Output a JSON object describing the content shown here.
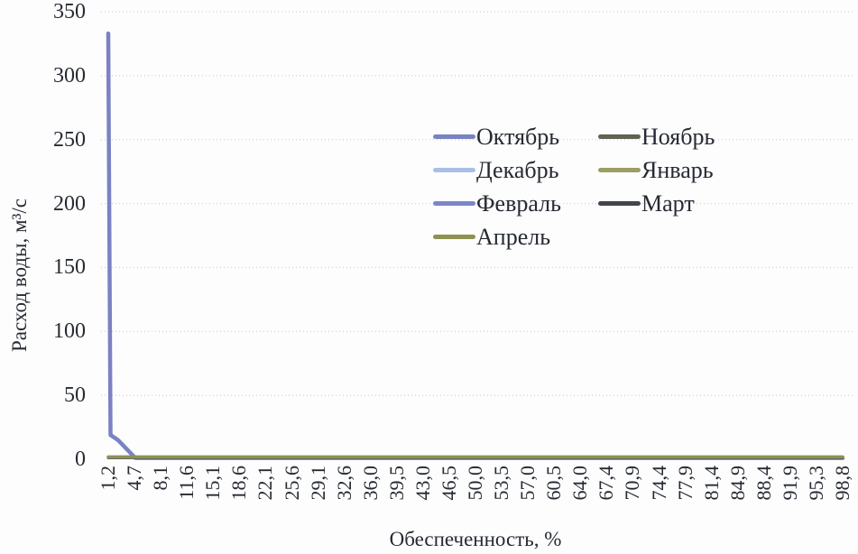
{
  "chart_data": {
    "type": "line",
    "xlabel": "Обеспеченность, %",
    "ylabel": "Расход воды, м³/с",
    "xlim": [
      1.2,
      98.8
    ],
    "ylim": [
      0,
      350
    ],
    "yticks": [
      0,
      50,
      100,
      150,
      200,
      250,
      300,
      350
    ],
    "categories": [
      "1,2",
      "4,7",
      "8,1",
      "11,6",
      "15,1",
      "18,6",
      "22,1",
      "25,6",
      "29,1",
      "32,6",
      "36,0",
      "39,5",
      "43,0",
      "46,5",
      "50,0",
      "53,5",
      "57,0",
      "60,5",
      "64,0",
      "67,4",
      "70,9",
      "74,4",
      "77,9",
      "81,4",
      "84,9",
      "88,4",
      "91,9",
      "95,3",
      "98,8"
    ],
    "grid": "horizontal-dotted",
    "legend_position": "inside-upper-right",
    "series": [
      {
        "name": "Октябрь",
        "color": "#7a82c4",
        "points": [
          [
            1.2,
            333
          ],
          [
            1.5,
            19
          ],
          [
            2.5,
            15
          ],
          [
            4.8,
            1
          ],
          [
            98.8,
            1
          ]
        ]
      },
      {
        "name": "Ноябрь",
        "color": "#626253",
        "points": [
          [
            1.2,
            1.3
          ],
          [
            98.8,
            1.3
          ]
        ]
      },
      {
        "name": "Декабрь",
        "color": "#a9c0e6",
        "points": [
          [
            1.2,
            1.1
          ],
          [
            98.8,
            1.1
          ]
        ]
      },
      {
        "name": "Январь",
        "color": "#9d9d66",
        "points": [
          [
            1.2,
            1.6
          ],
          [
            98.8,
            1.6
          ]
        ]
      },
      {
        "name": "Февраль",
        "color": "#7d86c8",
        "points": [
          [
            1.2,
            1.4
          ],
          [
            98.8,
            1.4
          ]
        ]
      },
      {
        "name": "Март",
        "color": "#42454d",
        "points": [
          [
            1.2,
            1.2
          ],
          [
            98.8,
            1.2
          ]
        ]
      },
      {
        "name": "Апрель",
        "color": "#8e914f",
        "points": [
          [
            1.2,
            1.8
          ],
          [
            98.8,
            1.8
          ]
        ]
      }
    ]
  }
}
